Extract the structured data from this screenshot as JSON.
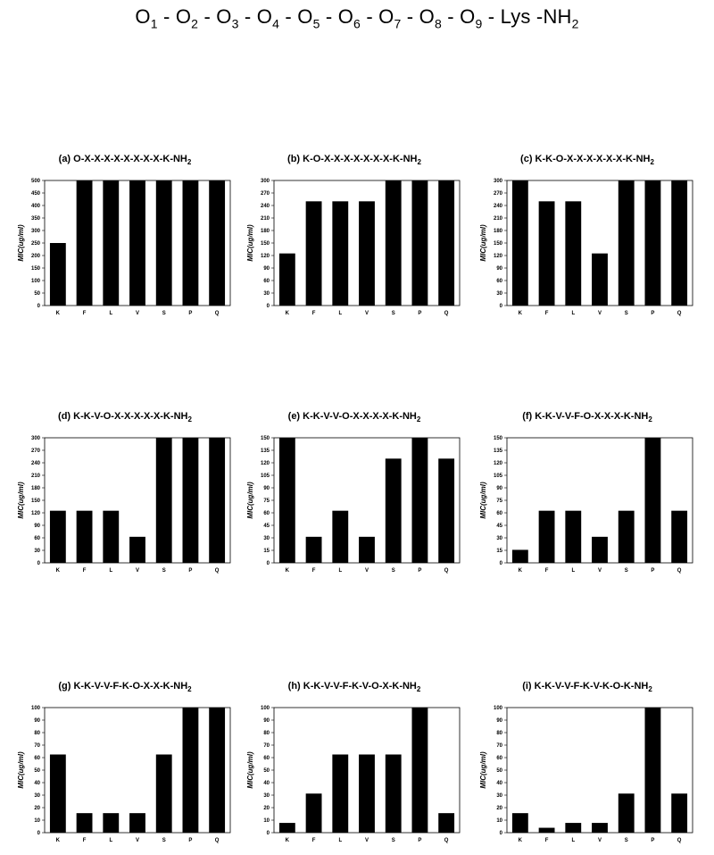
{
  "figure_title": {
    "parts": [
      "O",
      "1",
      " - O",
      "2",
      " - O",
      "3",
      " - O",
      "4",
      " - O",
      "5",
      " - O",
      "6",
      " - O",
      "7",
      " - O",
      "8",
      " - O",
      "9",
      " - Lys -NH",
      "2"
    ]
  },
  "chart_data": [
    {
      "type": "bar",
      "title": "(a) O-X-X-X-X-X-X-X-X-K-NH",
      "title_sub": "2",
      "ylabel": "MIC(ug/ml)",
      "categories": [
        "K",
        "F",
        "L",
        "V",
        "S",
        "P",
        "Q"
      ],
      "values": [
        250,
        500,
        500,
        500,
        500,
        500,
        500
      ],
      "ylim": [
        0,
        500
      ],
      "yticks": [
        "0",
        "50",
        "100",
        "150",
        "200",
        "250",
        "300",
        "350",
        "400",
        "450",
        "500"
      ]
    },
    {
      "type": "bar",
      "title": "(b) K-O-X-X-X-X-X-X-X-K-NH",
      "title_sub": "2",
      "ylabel": "MIC(ug/ml)",
      "categories": [
        "K",
        "F",
        "L",
        "V",
        "S",
        "P",
        "Q"
      ],
      "values": [
        125,
        250,
        250,
        250,
        300,
        300,
        300
      ],
      "ylim": [
        0,
        300
      ],
      "yticks": [
        "0",
        "30",
        "60",
        "90",
        "120",
        "150",
        "180",
        "210",
        "240",
        "270",
        "300"
      ]
    },
    {
      "type": "bar",
      "title": "(c) K-K-O-X-X-X-X-X-X-K-NH",
      "title_sub": "2",
      "ylabel": "MIC(ug/ml)",
      "categories": [
        "K",
        "F",
        "L",
        "V",
        "S",
        "P",
        "Q"
      ],
      "values": [
        300,
        250,
        250,
        125,
        300,
        300,
        300
      ],
      "ylim": [
        0,
        300
      ],
      "yticks": [
        "0",
        "30",
        "60",
        "90",
        "120",
        "150",
        "180",
        "210",
        "240",
        "270",
        "300"
      ]
    },
    {
      "type": "bar",
      "title": "(d) K-K-V-O-X-X-X-X-X-K-NH",
      "title_sub": "2",
      "ylabel": "MIC(ug/ml)",
      "categories": [
        "K",
        "F",
        "L",
        "V",
        "S",
        "P",
        "Q"
      ],
      "values": [
        125,
        125,
        125,
        62.5,
        300,
        300,
        300
      ],
      "ylim": [
        0,
        300
      ],
      "yticks": [
        "0",
        "30",
        "60",
        "90",
        "120",
        "150",
        "180",
        "210",
        "240",
        "270",
        "300"
      ]
    },
    {
      "type": "bar",
      "title": "(e) K-K-V-V-O-X-X-X-X-K-NH",
      "title_sub": "2",
      "ylabel": "MIC(ug/ml)",
      "categories": [
        "K",
        "F",
        "L",
        "V",
        "S",
        "P",
        "Q"
      ],
      "values": [
        150,
        31.25,
        62.5,
        31.25,
        125,
        150,
        125
      ],
      "ylim": [
        0,
        150
      ],
      "yticks": [
        "0",
        "15",
        "30",
        "45",
        "60",
        "75",
        "90",
        "105",
        "120",
        "135",
        "150"
      ]
    },
    {
      "type": "bar",
      "title": "(f) K-K-V-V-F-O-X-X-X-K-NH",
      "title_sub": "2",
      "ylabel": "MIC(ug/ml)",
      "categories": [
        "K",
        "F",
        "L",
        "V",
        "S",
        "P",
        "Q"
      ],
      "values": [
        15.6,
        62.5,
        62.5,
        31.25,
        62.5,
        150,
        62.5
      ],
      "ylim": [
        0,
        150
      ],
      "yticks": [
        "0",
        "15",
        "30",
        "45",
        "60",
        "75",
        "90",
        "105",
        "120",
        "135",
        "150"
      ]
    },
    {
      "type": "bar",
      "title": "(g) K-K-V-V-F-K-O-X-X-K-NH",
      "title_sub": "2",
      "ylabel": "MIC(ug/ml)",
      "categories": [
        "K",
        "F",
        "L",
        "V",
        "S",
        "P",
        "Q"
      ],
      "values": [
        62.5,
        15.6,
        15.6,
        15.6,
        62.5,
        100,
        100
      ],
      "ylim": [
        0,
        100
      ],
      "yticks": [
        "0",
        "10",
        "20",
        "30",
        "40",
        "50",
        "60",
        "70",
        "80",
        "90",
        "100"
      ]
    },
    {
      "type": "bar",
      "title": "(h) K-K-V-V-F-K-V-O-X-K-NH",
      "title_sub": "2",
      "ylabel": "MIC(ug/ml)",
      "categories": [
        "K",
        "F",
        "L",
        "V",
        "S",
        "P",
        "Q"
      ],
      "values": [
        7.8,
        31.25,
        62.5,
        62.5,
        62.5,
        100,
        15.6
      ],
      "ylim": [
        0,
        100
      ],
      "yticks": [
        "0",
        "10",
        "20",
        "30",
        "40",
        "50",
        "60",
        "70",
        "80",
        "90",
        "100"
      ]
    },
    {
      "type": "bar",
      "title": "(i) K-K-V-V-F-K-V-K-O-K-NH",
      "title_sub": "2",
      "ylabel": "MIC(ug/ml)",
      "categories": [
        "K",
        "F",
        "L",
        "V",
        "S",
        "P",
        "Q"
      ],
      "values": [
        15.6,
        3.9,
        7.8,
        7.8,
        31.25,
        100,
        31.25
      ],
      "ylim": [
        0,
        100
      ],
      "yticks": [
        "0",
        "10",
        "20",
        "30",
        "40",
        "50",
        "60",
        "70",
        "80",
        "90",
        "100"
      ]
    }
  ]
}
